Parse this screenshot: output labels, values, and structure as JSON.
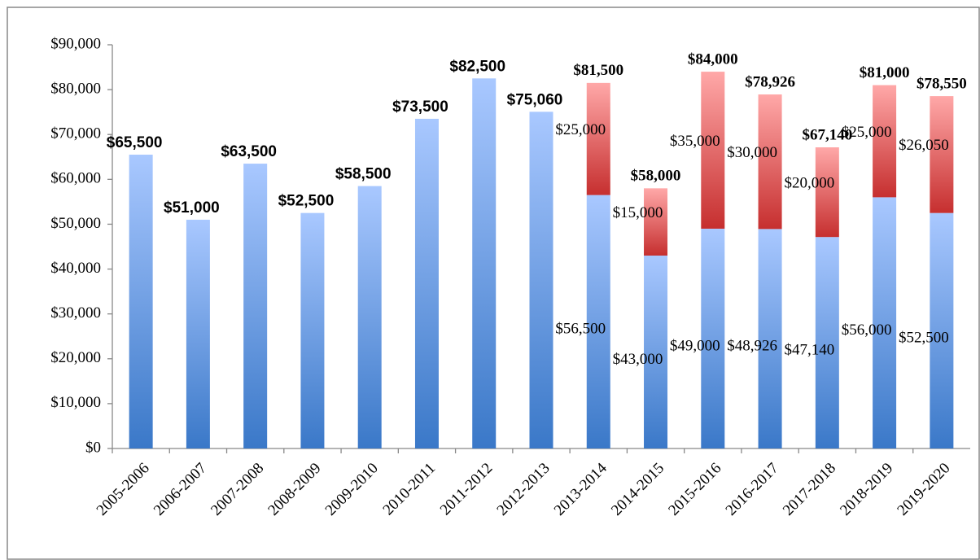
{
  "chart_data": {
    "type": "stacked_bar",
    "categories": [
      "2005-2006",
      "2006-2007",
      "2007-2008",
      "2008-2009",
      "2009-2010",
      "2010-2011",
      "2011-2012",
      "2012-2013",
      "2013-2014",
      "2014-2015",
      "2015-2016",
      "2016-2017",
      "2017-2018",
      "2018-2019",
      "2019-2020"
    ],
    "series": [
      {
        "color": [
          "#a9c8ff",
          "#3a78c8"
        ],
        "values": [
          65500,
          51000,
          63500,
          52500,
          58500,
          73500,
          82500,
          75060,
          56500,
          43000,
          49000,
          48926,
          47140,
          56000,
          52500
        ],
        "value_labels": [
          "$65,500",
          "$51,000",
          "$63,500",
          "$52,500",
          "$58,500",
          "$73,500",
          "$82,500",
          "$75,060",
          "$56,500",
          "$43,000",
          "$49,000",
          "$48,926",
          "$47,140",
          "$56,000",
          "$52,500"
        ]
      },
      {
        "color": [
          "#ffa8a8",
          "#c62f2f"
        ],
        "values": [
          null,
          null,
          null,
          null,
          null,
          null,
          null,
          null,
          25000,
          15000,
          35000,
          30000,
          20000,
          25000,
          26050
        ],
        "value_labels": [
          null,
          null,
          null,
          null,
          null,
          null,
          null,
          null,
          "$25,000",
          "$15,000",
          "$35,000",
          "$30,000",
          "$20,000",
          "$25,000",
          "$26,050"
        ]
      }
    ],
    "totals": [
      null,
      null,
      null,
      null,
      null,
      null,
      null,
      null,
      81500,
      58000,
      84000,
      78926,
      67140,
      81000,
      78550
    ],
    "total_labels": [
      null,
      null,
      null,
      null,
      null,
      null,
      null,
      null,
      "$81,500",
      "$58,000",
      "$84,000",
      "$78,926",
      "$67,140",
      "$81,000",
      "$78,550"
    ],
    "single_label_color": "#0a7d0a",
    "total_label_color": "#2fae4a",
    "ylim": [
      0,
      90000
    ],
    "yticks": [
      {
        "value": 0,
        "label": "$0"
      },
      {
        "value": 10000,
        "label": "$10,000"
      },
      {
        "value": 20000,
        "label": "$20,000"
      },
      {
        "value": 30000,
        "label": "$30,000"
      },
      {
        "value": 40000,
        "label": "$40,000"
      },
      {
        "value": 50000,
        "label": "$50,000"
      },
      {
        "value": 60000,
        "label": "$60,000"
      },
      {
        "value": 70000,
        "label": "$70,000"
      },
      {
        "value": 80000,
        "label": "$80,000"
      },
      {
        "value": 90000,
        "label": "$90,000"
      }
    ],
    "grid": false
  }
}
